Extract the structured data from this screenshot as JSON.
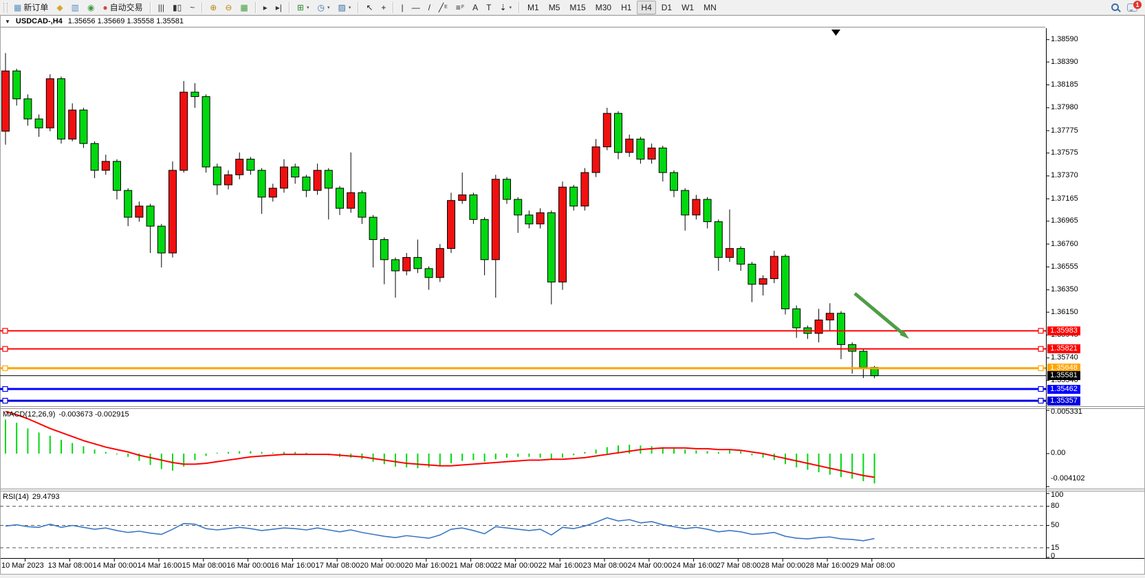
{
  "toolbar": {
    "items": [
      {
        "t": "btn",
        "name": "new-order-button",
        "glyph": "▦",
        "gcolor": "#5a8fc0",
        "label": "新订单"
      },
      {
        "t": "btn",
        "name": "market-watch-button",
        "glyph": "◆",
        "gcolor": "#d9a62e"
      },
      {
        "t": "btn",
        "name": "data-window-button",
        "glyph": "▥",
        "gcolor": "#5a8fc0"
      },
      {
        "t": "btn",
        "name": "navigator-button",
        "glyph": "◉",
        "gcolor": "#3f9d3f"
      },
      {
        "t": "btn",
        "name": "auto-trading-button",
        "glyph": "●",
        "gcolor": "#c94f3f",
        "label": "自动交易"
      },
      {
        "t": "sep"
      },
      {
        "t": "btn",
        "name": "bar-chart-button",
        "glyph": "|||",
        "gcolor": "#333333"
      },
      {
        "t": "btn",
        "name": "candlestick-chart-button",
        "glyph": "▮▯",
        "gcolor": "#333333"
      },
      {
        "t": "btn",
        "name": "line-chart-button",
        "glyph": "~",
        "gcolor": "#333333"
      },
      {
        "t": "sep"
      },
      {
        "t": "btn",
        "name": "zoom-in-button",
        "glyph": "⊕",
        "gcolor": "#b8860b"
      },
      {
        "t": "btn",
        "name": "zoom-out-button",
        "glyph": "⊖",
        "gcolor": "#b8860b"
      },
      {
        "t": "btn",
        "name": "tile-windows-button",
        "glyph": "▦",
        "gcolor": "#3f9d3f"
      },
      {
        "t": "sep"
      },
      {
        "t": "btn",
        "name": "auto-scroll-button",
        "glyph": "▸",
        "gcolor": "#333333"
      },
      {
        "t": "btn",
        "name": "chart-shift-button",
        "glyph": "▸|",
        "gcolor": "#333333"
      },
      {
        "t": "sep"
      },
      {
        "t": "btn",
        "name": "indicators-button",
        "glyph": "⊞",
        "gcolor": "#2e8b2e",
        "caret": true
      },
      {
        "t": "btn",
        "name": "periods-button",
        "glyph": "◷",
        "gcolor": "#3a6ea5",
        "caret": true
      },
      {
        "t": "btn",
        "name": "templates-button",
        "glyph": "▨",
        "gcolor": "#3a6ea5",
        "caret": true
      },
      {
        "t": "sep"
      },
      {
        "t": "btn",
        "name": "cursor-button",
        "glyph": "↖",
        "gcolor": "#222222"
      },
      {
        "t": "btn",
        "name": "crosshair-button",
        "glyph": "+",
        "gcolor": "#222222"
      },
      {
        "t": "sep"
      },
      {
        "t": "btn",
        "name": "vertical-line-button",
        "glyph": "|",
        "gcolor": "#222222"
      },
      {
        "t": "btn",
        "name": "horizontal-line-button",
        "glyph": "—",
        "gcolor": "#222222"
      },
      {
        "t": "btn",
        "name": "trendline-button",
        "glyph": "/",
        "gcolor": "#222222"
      },
      {
        "t": "btn",
        "name": "equidistant-channel-button",
        "glyph": "╱",
        "gcolor": "#222222",
        "sub": "E"
      },
      {
        "t": "btn",
        "name": "fibonacci-button",
        "glyph": "≡",
        "gcolor": "#222222",
        "sub": "F"
      },
      {
        "t": "btn",
        "name": "text-button",
        "glyph": "A",
        "gcolor": "#222222"
      },
      {
        "t": "btn",
        "name": "text-label-button",
        "glyph": "T",
        "gcolor": "#222222"
      },
      {
        "t": "btn",
        "name": "arrows-button",
        "glyph": "⇣",
        "gcolor": "#222222",
        "caret": true
      },
      {
        "t": "sep"
      },
      {
        "t": "tf",
        "name": "timeframe-m1",
        "label": "M1"
      },
      {
        "t": "tf",
        "name": "timeframe-m5",
        "label": "M5"
      },
      {
        "t": "tf",
        "name": "timeframe-m15",
        "label": "M15"
      },
      {
        "t": "tf",
        "name": "timeframe-m30",
        "label": "M30"
      },
      {
        "t": "tf",
        "name": "timeframe-h1",
        "label": "H1"
      },
      {
        "t": "tf",
        "name": "timeframe-h4",
        "label": "H4",
        "active": true
      },
      {
        "t": "tf",
        "name": "timeframe-d1",
        "label": "D1"
      },
      {
        "t": "tf",
        "name": "timeframe-w1",
        "label": "W1"
      },
      {
        "t": "tf",
        "name": "timeframe-mn",
        "label": "MN"
      },
      {
        "t": "spacer"
      },
      {
        "t": "search",
        "name": "search-icon"
      },
      {
        "t": "chat",
        "name": "notifications-icon"
      }
    ],
    "notification_count": "1"
  },
  "chart": {
    "title": {
      "symbol": "USDCAD-,H4",
      "ohlc": "1.35656 1.35669 1.35558 1.35581"
    }
  },
  "macd": {
    "label": "MACD(12,26,9)",
    "values_text": "-0.003673 -0.002915",
    "axis_labels": [
      "0.005331",
      "0.00",
      "-0.004102"
    ]
  },
  "rsi": {
    "label": "RSI(14)",
    "value_text": "29.4793",
    "axis_labels": [
      "100",
      "80",
      "50",
      "15",
      "0"
    ]
  },
  "chart_data": {
    "type": "candlestick",
    "symbol": "USDCAD",
    "period": "H4",
    "title": "USDCAD-,H4",
    "current_ohlc": {
      "open": 1.35656,
      "high": 1.35669,
      "low": 1.35558,
      "close": 1.35581
    },
    "up_color": "#f01010",
    "down_color": "#00d810",
    "wick_color": "#000000",
    "price_axis_ticks": [
      "1.38590",
      "1.38390",
      "1.38185",
      "1.37980",
      "1.37775",
      "1.37575",
      "1.37370",
      "1.37165",
      "1.36965",
      "1.36760",
      "1.36555",
      "1.36350",
      "1.36150",
      "1.35945",
      "1.35740",
      "1.35540",
      "1.35335"
    ],
    "horizontal_lines": [
      {
        "label": "1.35983",
        "price": 1.35983,
        "color": "#ff0000",
        "width": 2
      },
      {
        "label": "1.35821",
        "price": 1.35821,
        "color": "#ff0000",
        "width": 2
      },
      {
        "label": "1.35648",
        "price": 1.35648,
        "color": "#ffa500",
        "width": 3
      },
      {
        "label": "1.35581",
        "price": 1.35581,
        "color": "#000000",
        "width": 1,
        "is_current_price": true
      },
      {
        "label": "1.35462",
        "price": 1.35462,
        "color": "#0000ff",
        "width": 3
      },
      {
        "label": "1.35357",
        "price": 1.35357,
        "color": "#0000dc",
        "width": 3
      }
    ],
    "time_axis_labels": [
      "10 Mar 2023",
      "13 Mar 08:00",
      "14 Mar 00:00",
      "14 Mar 16:00",
      "15 Mar 08:00",
      "16 Mar 00:00",
      "16 Mar 16:00",
      "17 Mar 08:00",
      "20 Mar 00:00",
      "20 Mar 16:00",
      "21 Mar 08:00",
      "22 Mar 00:00",
      "22 Mar 16:00",
      "23 Mar 08:00",
      "24 Mar 00:00",
      "24 Mar 16:00",
      "27 Mar 08:00",
      "28 Mar 00:00",
      "28 Mar 16:00",
      "29 Mar 08:00"
    ],
    "candles_ohlc": [
      [
        1.3777,
        1.3847,
        1.3765,
        1.3831
      ],
      [
        1.3831,
        1.3833,
        1.38,
        1.3806
      ],
      [
        1.3806,
        1.381,
        1.3782,
        1.3788
      ],
      [
        1.3788,
        1.3792,
        1.3772,
        1.378
      ],
      [
        1.378,
        1.3828,
        1.3777,
        1.3824
      ],
      [
        1.3824,
        1.3826,
        1.3766,
        1.377
      ],
      [
        1.377,
        1.3802,
        1.3768,
        1.3796
      ],
      [
        1.3796,
        1.3798,
        1.3762,
        1.3766
      ],
      [
        1.3766,
        1.3768,
        1.3735,
        1.3742
      ],
      [
        1.3742,
        1.3756,
        1.3738,
        1.375
      ],
      [
        1.375,
        1.3752,
        1.3716,
        1.3724
      ],
      [
        1.3724,
        1.3726,
        1.3692,
        1.37
      ],
      [
        1.37,
        1.3714,
        1.3696,
        1.371
      ],
      [
        1.371,
        1.3712,
        1.3668,
        1.3692
      ],
      [
        1.3692,
        1.3694,
        1.3655,
        1.3668
      ],
      [
        1.3668,
        1.375,
        1.3664,
        1.3742
      ],
      [
        1.3742,
        1.3822,
        1.374,
        1.3812
      ],
      [
        1.3812,
        1.382,
        1.3798,
        1.3808
      ],
      [
        1.3808,
        1.381,
        1.374,
        1.3745
      ],
      [
        1.3745,
        1.3748,
        1.372,
        1.3729
      ],
      [
        1.3729,
        1.3742,
        1.3725,
        1.3738
      ],
      [
        1.3738,
        1.3758,
        1.3734,
        1.3752
      ],
      [
        1.3752,
        1.3754,
        1.3738,
        1.3742
      ],
      [
        1.3742,
        1.3744,
        1.3703,
        1.3718
      ],
      [
        1.3718,
        1.373,
        1.3714,
        1.3726
      ],
      [
        1.3726,
        1.3752,
        1.3722,
        1.3745
      ],
      [
        1.3745,
        1.3748,
        1.373,
        1.3736
      ],
      [
        1.3736,
        1.3738,
        1.3718,
        1.3724
      ],
      [
        1.3724,
        1.3748,
        1.372,
        1.3742
      ],
      [
        1.3742,
        1.3744,
        1.3698,
        1.3726
      ],
      [
        1.3726,
        1.3728,
        1.3702,
        1.3708
      ],
      [
        1.3708,
        1.3758,
        1.3704,
        1.3722
      ],
      [
        1.3722,
        1.3724,
        1.3694,
        1.37
      ],
      [
        1.37,
        1.3702,
        1.3655,
        1.368
      ],
      [
        1.368,
        1.3682,
        1.364,
        1.3662
      ],
      [
        1.3662,
        1.3664,
        1.3628,
        1.3652
      ],
      [
        1.3652,
        1.3668,
        1.3648,
        1.3664
      ],
      [
        1.3664,
        1.368,
        1.365,
        1.3654
      ],
      [
        1.3654,
        1.3656,
        1.3635,
        1.3646
      ],
      [
        1.3646,
        1.3676,
        1.3642,
        1.3672
      ],
      [
        1.3672,
        1.3722,
        1.3668,
        1.3715
      ],
      [
        1.3715,
        1.374,
        1.3712,
        1.372
      ],
      [
        1.372,
        1.3722,
        1.3694,
        1.3698
      ],
      [
        1.3698,
        1.37,
        1.3648,
        1.3662
      ],
      [
        1.3662,
        1.3738,
        1.3628,
        1.3734
      ],
      [
        1.3734,
        1.3736,
        1.3712,
        1.3716
      ],
      [
        1.3716,
        1.3718,
        1.3686,
        1.3702
      ],
      [
        1.3702,
        1.3706,
        1.369,
        1.3694
      ],
      [
        1.3694,
        1.3708,
        1.369,
        1.3704
      ],
      [
        1.3704,
        1.3706,
        1.3622,
        1.3642
      ],
      [
        1.3642,
        1.3732,
        1.3635,
        1.3727
      ],
      [
        1.3727,
        1.3729,
        1.3706,
        1.371
      ],
      [
        1.371,
        1.3744,
        1.3706,
        1.374
      ],
      [
        1.374,
        1.377,
        1.3736,
        1.3763
      ],
      [
        1.3763,
        1.3798,
        1.376,
        1.3793
      ],
      [
        1.3793,
        1.3795,
        1.3752,
        1.3758
      ],
      [
        1.3758,
        1.3774,
        1.3754,
        1.377
      ],
      [
        1.377,
        1.3772,
        1.3748,
        1.3752
      ],
      [
        1.3752,
        1.3766,
        1.3748,
        1.3762
      ],
      [
        1.3762,
        1.3764,
        1.3732,
        1.374
      ],
      [
        1.374,
        1.3742,
        1.3718,
        1.3724
      ],
      [
        1.3724,
        1.3726,
        1.3688,
        1.3702
      ],
      [
        1.3702,
        1.372,
        1.3698,
        1.3716
      ],
      [
        1.3716,
        1.3718,
        1.369,
        1.3696
      ],
      [
        1.3696,
        1.3698,
        1.3652,
        1.3664
      ],
      [
        1.3664,
        1.3707,
        1.366,
        1.3672
      ],
      [
        1.3672,
        1.3674,
        1.3652,
        1.3658
      ],
      [
        1.3658,
        1.366,
        1.3624,
        1.364
      ],
      [
        1.364,
        1.3648,
        1.363,
        1.3645
      ],
      [
        1.3645,
        1.367,
        1.3641,
        1.3665
      ],
      [
        1.3665,
        1.3667,
        1.3613,
        1.3618
      ],
      [
        1.3618,
        1.3621,
        1.3592,
        1.3601
      ],
      [
        1.3601,
        1.3603,
        1.3591,
        1.3596
      ],
      [
        1.3596,
        1.3618,
        1.3588,
        1.3608
      ],
      [
        1.3608,
        1.3623,
        1.3598,
        1.3614
      ],
      [
        1.3614,
        1.3616,
        1.3573,
        1.3586
      ],
      [
        1.3586,
        1.3588,
        1.356,
        1.358
      ],
      [
        1.358,
        1.3582,
        1.3556,
        1.35656
      ],
      [
        1.35656,
        1.35669,
        1.35558,
        1.35581
      ]
    ],
    "macd": {
      "params": "12,26,9",
      "histogram_color": "#00d810",
      "signal_color": "#ff0000",
      "axis_max": 0.005331,
      "axis_min": -0.004102,
      "histogram": [
        0.0042,
        0.0038,
        0.0031,
        0.0026,
        0.0022,
        0.0017,
        0.0013,
        0.0009,
        0.0005,
        0.0002,
        -0.0001,
        -0.0004,
        -0.0009,
        -0.0014,
        -0.0019,
        -0.0021,
        -0.0016,
        -0.0008,
        -0.0003,
        0.0001,
        0.0002,
        0.0003,
        0.0003,
        0.0002,
        0.0001,
        0.0002,
        0.0002,
        0.0001,
        -0.0001,
        -0.0002,
        -0.0004,
        -0.0005,
        -0.0007,
        -0.001,
        -0.0013,
        -0.0016,
        -0.0017,
        -0.0018,
        -0.0017,
        -0.0015,
        -0.0012,
        -0.0009,
        -0.0008,
        -0.001,
        -0.0007,
        -0.0005,
        -0.0004,
        -0.0004,
        -0.0005,
        -0.0007,
        -0.0005,
        -0.0002,
        0.0002,
        0.0005,
        0.0008,
        0.001,
        0.0011,
        0.001,
        0.0009,
        0.0008,
        0.0006,
        0.0005,
        0.0004,
        0.0003,
        0.0002,
        0.0004,
        0.0003,
        -0.0002,
        -0.0005,
        -0.0008,
        -0.0013,
        -0.0017,
        -0.002,
        -0.0023,
        -0.0026,
        -0.0029,
        -0.0031,
        -0.0034,
        -0.003673
      ],
      "signal": [
        0.0052,
        0.0048,
        0.0043,
        0.0037,
        0.0031,
        0.0026,
        0.0021,
        0.0016,
        0.0012,
        0.0008,
        0.0005,
        0.0002,
        -0.0002,
        -0.0005,
        -0.0008,
        -0.0011,
        -0.0013,
        -0.0013,
        -0.0012,
        -0.001,
        -0.0008,
        -0.0006,
        -0.0004,
        -0.0003,
        -0.0002,
        -0.0001,
        -0.0001,
        -0.0001,
        -0.0001,
        -0.0001,
        -0.0002,
        -0.0003,
        -0.0004,
        -0.0006,
        -0.0008,
        -0.001,
        -0.0012,
        -0.0013,
        -0.0014,
        -0.0015,
        -0.0015,
        -0.0014,
        -0.0013,
        -0.0012,
        -0.0011,
        -0.001,
        -0.0009,
        -0.0008,
        -0.0008,
        -0.0007,
        -0.0007,
        -0.0006,
        -0.0005,
        -0.0003,
        -0.0001,
        0.0001,
        0.0003,
        0.0005,
        0.0006,
        0.0007,
        0.0007,
        0.0007,
        0.0006,
        0.0006,
        0.0005,
        0.0005,
        0.0004,
        0.0002,
        0.0,
        -0.0003,
        -0.0006,
        -0.0009,
        -0.0012,
        -0.0015,
        -0.0018,
        -0.0021,
        -0.0024,
        -0.0027,
        -0.002915
      ]
    },
    "rsi": {
      "period": 14,
      "line_color": "#3a77c3",
      "levels": [
        80,
        50,
        15
      ],
      "values": [
        49,
        51,
        48,
        47,
        52,
        47,
        50,
        47,
        44,
        46,
        42,
        39,
        41,
        38,
        36,
        44,
        53,
        52,
        45,
        43,
        45,
        47,
        45,
        42,
        44,
        46,
        45,
        43,
        46,
        43,
        40,
        43,
        39,
        36,
        33,
        31,
        34,
        32,
        30,
        35,
        44,
        46,
        42,
        37,
        48,
        46,
        44,
        42,
        44,
        35,
        47,
        45,
        49,
        55,
        62,
        57,
        59,
        54,
        56,
        51,
        48,
        45,
        47,
        44,
        40,
        42,
        40,
        36,
        37,
        39,
        33,
        30,
        29,
        31,
        32,
        29,
        28,
        26,
        29.4793
      ]
    },
    "annotation_arrow": {
      "color": "#4f9d45",
      "from": [
        1243,
        427
      ],
      "to": [
        1322,
        493
      ]
    }
  }
}
